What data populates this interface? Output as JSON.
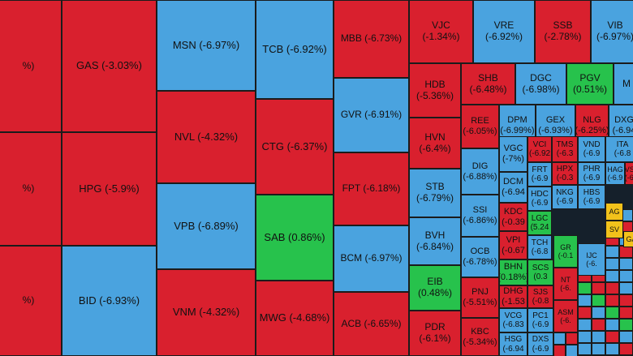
{
  "colors": {
    "down": "#d9202e",
    "floor": "#4aa3df",
    "up": "#27c24c",
    "flat": "#f2c21b"
  },
  "tiles": [
    {
      "label": "%)",
      "status": "down"
    },
    {
      "label": "%)",
      "status": "down"
    },
    {
      "label": "%)",
      "status": "down"
    },
    {
      "label": "GAS (-3.03%)",
      "status": "down"
    },
    {
      "label": "HPG (-5.9%)",
      "status": "down"
    },
    {
      "label": "BID (-6.93%)",
      "status": "floor"
    },
    {
      "label": "MSN (-6.97%)",
      "status": "floor"
    },
    {
      "label": "NVL (-4.32%)",
      "status": "down"
    },
    {
      "label": "VPB (-6.89%)",
      "status": "floor"
    },
    {
      "label": "VNM (-4.32%)",
      "status": "down"
    },
    {
      "label": "TCB (-6.92%)",
      "status": "floor"
    },
    {
      "label": "CTG (-6.37%)",
      "status": "down"
    },
    {
      "label": "SAB (0.86%)",
      "status": "up"
    },
    {
      "label": "MWG (-4.68%)",
      "status": "down"
    },
    {
      "label": "MBB (-6.73%)",
      "status": "down"
    },
    {
      "label": "GVR (-6.91%)",
      "status": "floor"
    },
    {
      "label": "FPT (-6.18%)",
      "status": "down"
    },
    {
      "label": "BCM (-6.97%)",
      "status": "floor"
    },
    {
      "label": "ACB (-6.65%)",
      "status": "down"
    },
    {
      "label": "VJC\n(-1.34%)",
      "status": "down"
    },
    {
      "label": "VRE\n(-6.92%)",
      "status": "floor"
    },
    {
      "label": "SSB\n(-2.78%)",
      "status": "down"
    },
    {
      "label": "VIB\n(-6.97%)",
      "status": "floor"
    },
    {
      "label": "HDB\n(-5.36%)",
      "status": "down"
    },
    {
      "label": "HVN\n(-6.4%)",
      "status": "down"
    },
    {
      "label": "STB\n(-6.79%)",
      "status": "floor"
    },
    {
      "label": "BVH\n(-6.84%)",
      "status": "floor"
    },
    {
      "label": "EIB\n(0.48%)",
      "status": "up"
    },
    {
      "label": "PDR\n(-6.1%)",
      "status": "down"
    },
    {
      "label": "SHB\n(-6.48%)",
      "status": "down"
    },
    {
      "label": "DGC\n(-6.98%)",
      "status": "floor"
    },
    {
      "label": "PGV\n(0.51%)",
      "status": "up"
    },
    {
      "label": "M",
      "status": "floor"
    },
    {
      "label": "REE\n(-6.05%)",
      "status": "down"
    },
    {
      "label": "DPM\n(-6.99%)",
      "status": "floor"
    },
    {
      "label": "GEX\n(-6.93%)",
      "status": "floor"
    },
    {
      "label": "NLG\n(-6.25%)",
      "status": "down"
    },
    {
      "label": "DXG\n(-6.94",
      "status": "floor"
    },
    {
      "label": "DIG\n(-6.88%)",
      "status": "floor"
    },
    {
      "label": "VGC\n(-7%)",
      "status": "floor"
    },
    {
      "label": "VCI\n(-6.92",
      "status": "down"
    },
    {
      "label": "TMS\n(-6.3",
      "status": "down"
    },
    {
      "label": "VND\n(-6.9",
      "status": "floor"
    },
    {
      "label": "ITA\n(-6.8",
      "status": "floor"
    },
    {
      "label": "SSI\n(-6.86%)",
      "status": "floor"
    },
    {
      "label": "DCM\n(-6.94",
      "status": "floor"
    },
    {
      "label": "KDC\n(-0.39",
      "status": "down"
    },
    {
      "label": "VPI\n(-0.67",
      "status": "down"
    },
    {
      "label": "BHN\n(0.18%)",
      "status": "up"
    },
    {
      "label": "DHG\n(-1.53",
      "status": "down"
    },
    {
      "label": "OCB\n(-6.78%)",
      "status": "floor"
    },
    {
      "label": "PNJ\n(-5.51%)",
      "status": "down"
    },
    {
      "label": "KBC\n(-5.34%)",
      "status": "down"
    },
    {
      "label": "VCG\n(-6.83",
      "status": "floor"
    },
    {
      "label": "HSG\n(-6.94",
      "status": "floor"
    },
    {
      "label": "SCS\n(0.3",
      "status": "up"
    },
    {
      "label": "SJS\n(-0.8",
      "status": "down"
    },
    {
      "label": "PC1\n(-6.9",
      "status": "floor"
    },
    {
      "label": "DXS\n(-6.9",
      "status": "floor"
    },
    {
      "label": "FRT\n(-6.9",
      "status": "floor"
    },
    {
      "label": "HDC\n(-6.9",
      "status": "floor"
    },
    {
      "label": "LGC\n(5.24",
      "status": "up"
    },
    {
      "label": "TCH\n(-6.8",
      "status": "floor"
    },
    {
      "label": "HPX\n(-0.3",
      "status": "down"
    },
    {
      "label": "PHR\n(-6.9",
      "status": "floor"
    },
    {
      "label": "HAG\n(-6.9",
      "status": "floor"
    },
    {
      "label": "VSC\n(-6.9",
      "status": "down"
    },
    {
      "label": "NKG\n(-6.9",
      "status": "floor"
    },
    {
      "label": "HBS\n(-6.9",
      "status": "floor"
    },
    {
      "label": "AG",
      "status": "flat"
    },
    {
      "label": "SV",
      "status": "flat"
    },
    {
      "label": "GA",
      "status": "flat"
    },
    {
      "label": "GR\n(-0.1",
      "status": "up"
    },
    {
      "label": "NT\n(-6.",
      "status": "down"
    },
    {
      "label": "ASM\n(-6.",
      "status": "down"
    },
    {
      "label": "IJC\n(-6.",
      "status": "floor"
    }
  ]
}
